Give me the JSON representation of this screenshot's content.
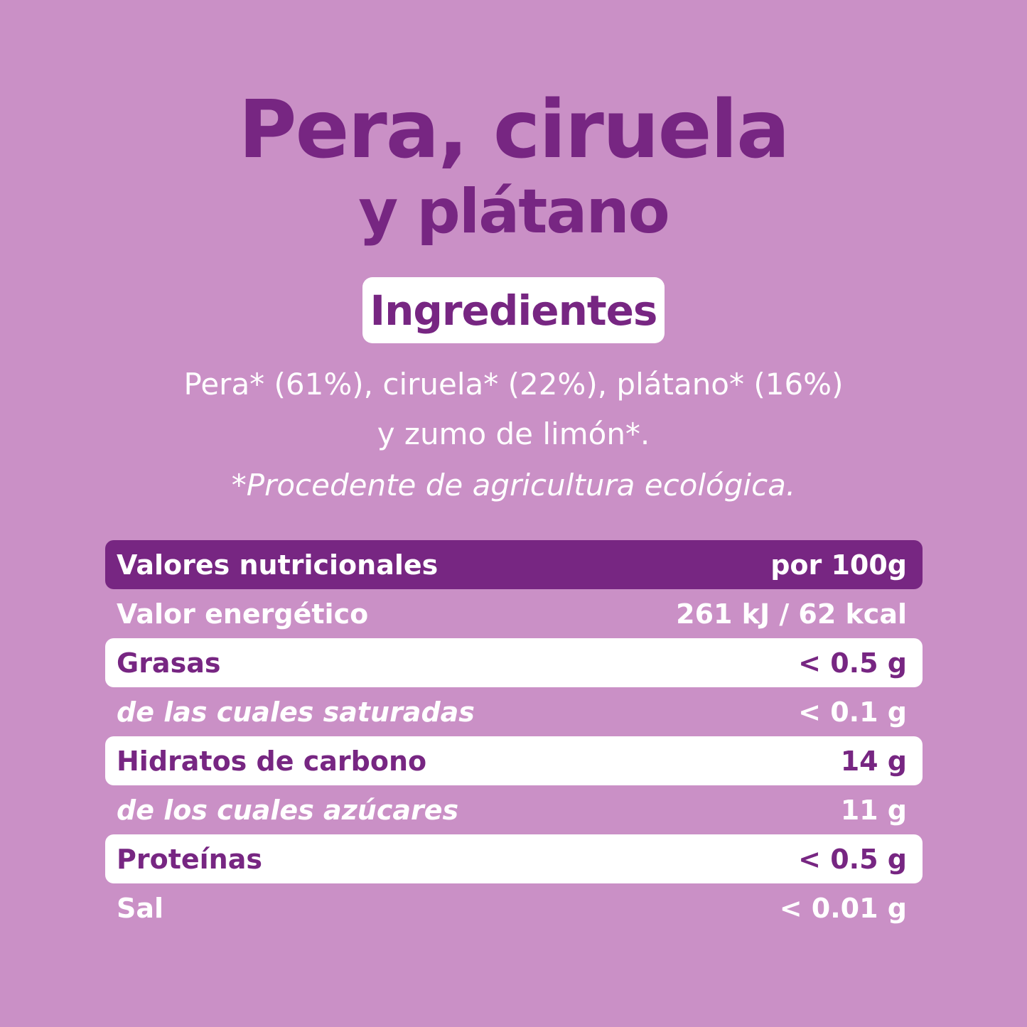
{
  "product": {
    "title_line1": "Pera, ciruela",
    "title_line2": "y plátano"
  },
  "ingredients": {
    "heading": "Ingredientes",
    "line1": "Pera* (61%), ciruela* (22%), plátano* (16%)",
    "line2": "y zumo de limón*.",
    "note": "*Procedente de agricultura ecológica."
  },
  "nutrition": {
    "header_label": "Valores nutricionales",
    "header_value": "por 100g",
    "rows": [
      {
        "label": "Valor energético",
        "value": "261 kJ / 62 kcal"
      },
      {
        "label": "Grasas",
        "value": "< 0.5 g"
      },
      {
        "label": "de las cuales saturadas",
        "value": "< 0.1 g"
      },
      {
        "label": "Hidratos de carbono",
        "value": "14 g"
      },
      {
        "label": "de los cuales azúcares",
        "value": "11 g"
      },
      {
        "label": "Proteínas",
        "value": "< 0.5 g"
      },
      {
        "label": "Sal",
        "value": "< 0.01 g"
      }
    ]
  },
  "colors": {
    "background": "#CA90C6",
    "accent": "#772682",
    "white": "#FFFFFF"
  }
}
